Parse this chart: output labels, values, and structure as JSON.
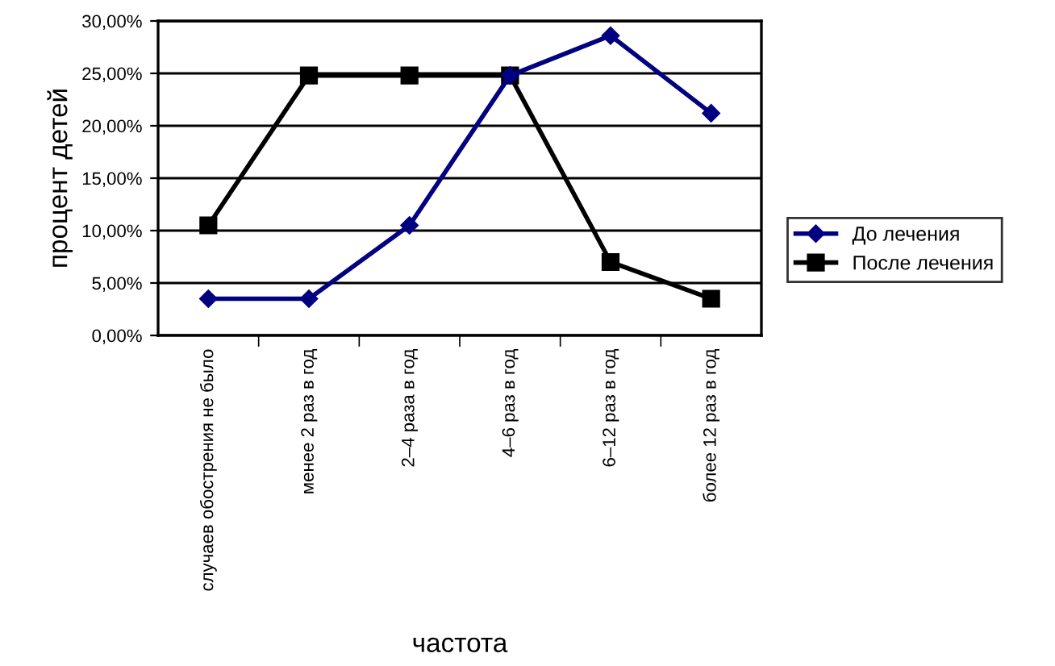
{
  "chart_data": {
    "type": "line",
    "xlabel": "частота",
    "ylabel": "процент детей",
    "categories": [
      "случаев обострения не было",
      "менее 2 раз в год",
      "2–4 раза в год",
      "4–6 раз в год",
      "6–12 раз в год",
      "более 12 раз в год"
    ],
    "series": [
      {
        "name": "До лечения",
        "color": "#000080",
        "marker": "diamond",
        "values": [
          3.5,
          3.5,
          10.5,
          24.8,
          28.6,
          21.2
        ]
      },
      {
        "name": "После лечения",
        "color": "#000000",
        "marker": "square",
        "values": [
          10.5,
          24.8,
          24.8,
          24.8,
          7.0,
          3.5
        ]
      }
    ],
    "ylim": [
      0,
      30
    ],
    "yticks": [
      {
        "value": 0,
        "label": "0,00%"
      },
      {
        "value": 5,
        "label": "5,00%"
      },
      {
        "value": 10,
        "label": "10,00%"
      },
      {
        "value": 15,
        "label": "15,00%"
      },
      {
        "value": 20,
        "label": "20,00%"
      },
      {
        "value": 25,
        "label": "25,00%"
      },
      {
        "value": 30,
        "label": "30,00%"
      }
    ],
    "grid": "y",
    "legend": "right"
  }
}
